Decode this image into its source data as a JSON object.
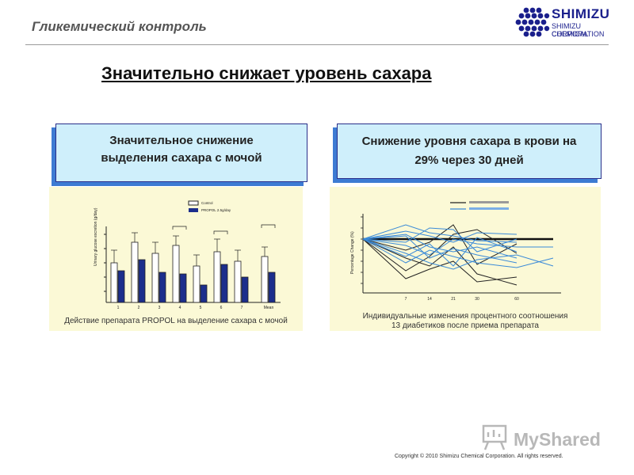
{
  "header": {
    "title": "Гликемический контроль"
  },
  "logo": {
    "name": "SHIMIZU",
    "sub_line_1": "SHIMIZU CHEMICAL",
    "sub_line_2": "CORPORATION",
    "color": "#1a1f8c"
  },
  "main_title": "Значительно снижает уровень сахара",
  "left_section": {
    "caption_line_1": "Значительное снижение",
    "caption_line_2": "выделения сахара с мочой",
    "figure_caption": "Действие препарата PROPOL на выделение сахара с мочой",
    "legend": [
      "Control",
      "PROPOL 2.5g/day"
    ],
    "categories": [
      "1",
      "2",
      "3",
      "4",
      "5",
      "6",
      "7",
      "Mean"
    ]
  },
  "right_section": {
    "caption_line_1": "Снижение уровня сахара в крови на",
    "caption_line_2": "29% через 30 дней",
    "figure_caption_line_1": "Индивидуальные изменения процентного соотношения",
    "figure_caption_line_2": "13 диабетиков после приема препарата",
    "x_ticks": [
      "7",
      "14",
      "21",
      "30",
      "60"
    ]
  },
  "colors": {
    "caption_box_bg": "#cfeffb",
    "caption_box_shadow": "#3d7bd3",
    "panel_bg": "#fbf9d6",
    "bar_dark": "#1c2e8c",
    "line_blue": "#3a8ad8"
  },
  "watermark": "MyShared",
  "copyright": "Copyright © 2010 Shimizu Chemical Corporation. All rights reserved."
}
